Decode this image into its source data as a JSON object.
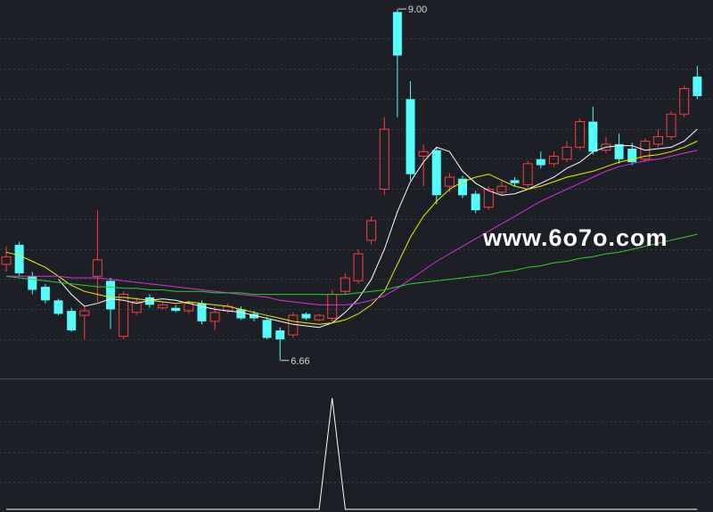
{
  "chart_data": {
    "type": "candlestick",
    "up_color": "#ff4040",
    "down_color": "#54fcfc",
    "ylim": [
      6.54,
      9.06
    ],
    "ohlc": [
      [
        7.3,
        7.42,
        7.25,
        7.35
      ],
      [
        7.43,
        7.45,
        7.22,
        7.24
      ],
      [
        7.22,
        7.25,
        7.1,
        7.13
      ],
      [
        7.15,
        7.17,
        7.04,
        7.06
      ],
      [
        7.06,
        7.07,
        6.96,
        6.97
      ],
      [
        6.99,
        7.01,
        6.85,
        6.86
      ],
      [
        6.96,
        7.02,
        6.8,
        6.99
      ],
      [
        7.22,
        7.66,
        7.05,
        7.33
      ],
      [
        7.19,
        7.21,
        6.87,
        7.0
      ],
      [
        6.82,
        7.12,
        6.8,
        7.1
      ],
      [
        6.98,
        7.08,
        6.96,
        7.05
      ],
      [
        7.08,
        7.1,
        7.01,
        7.03
      ],
      [
        7.01,
        7.05,
        7.0,
        7.03
      ],
      [
        7.01,
        7.03,
        6.98,
        6.99
      ],
      [
        6.99,
        7.06,
        6.97,
        7.04
      ],
      [
        7.04,
        7.06,
        6.9,
        6.92
      ],
      [
        6.92,
        7.02,
        6.86,
        6.98
      ],
      [
        6.99,
        7.04,
        6.97,
        7.02
      ],
      [
        7.0,
        7.02,
        6.93,
        6.94
      ],
      [
        6.97,
        6.99,
        6.92,
        6.94
      ],
      [
        6.93,
        6.95,
        6.8,
        6.81
      ],
      [
        6.86,
        6.88,
        6.66,
        6.8
      ],
      [
        6.83,
        6.98,
        6.81,
        6.96
      ],
      [
        6.97,
        6.98,
        6.93,
        6.94
      ],
      [
        6.93,
        6.97,
        6.92,
        6.96
      ],
      [
        6.94,
        7.13,
        6.92,
        7.1
      ],
      [
        7.12,
        7.24,
        7.1,
        7.21
      ],
      [
        7.19,
        7.4,
        7.17,
        7.37
      ],
      [
        7.46,
        7.62,
        7.43,
        7.59
      ],
      [
        7.8,
        8.28,
        7.76,
        8.2
      ],
      [
        8.98,
        9.0,
        8.28,
        8.69
      ],
      [
        8.4,
        8.52,
        7.86,
        7.9
      ],
      [
        8.02,
        8.1,
        7.82,
        8.05
      ],
      [
        8.06,
        8.08,
        7.7,
        7.76
      ],
      [
        7.82,
        7.91,
        7.78,
        7.88
      ],
      [
        7.87,
        7.89,
        7.74,
        7.76
      ],
      [
        7.77,
        7.79,
        7.64,
        7.66
      ],
      [
        7.68,
        7.82,
        7.66,
        7.8
      ],
      [
        7.78,
        7.85,
        7.76,
        7.82
      ],
      [
        7.86,
        7.88,
        7.82,
        7.84
      ],
      [
        7.83,
        7.99,
        7.81,
        7.97
      ],
      [
        8.0,
        8.05,
        7.94,
        7.96
      ],
      [
        7.97,
        8.05,
        7.95,
        8.02
      ],
      [
        8.0,
        8.12,
        7.98,
        8.08
      ],
      [
        8.08,
        8.27,
        8.06,
        8.25
      ],
      [
        8.25,
        8.35,
        8.03,
        8.05
      ],
      [
        8.06,
        8.15,
        8.04,
        8.1
      ],
      [
        8.1,
        8.17,
        7.97,
        8.0
      ],
      [
        8.07,
        8.11,
        7.96,
        7.98
      ],
      [
        8.0,
        8.14,
        7.98,
        8.12
      ],
      [
        8.1,
        8.2,
        8.08,
        8.15
      ],
      [
        8.15,
        8.32,
        8.13,
        8.3
      ],
      [
        8.3,
        8.49,
        8.28,
        8.47
      ],
      [
        8.55,
        8.62,
        8.4,
        8.42
      ]
    ],
    "series": [
      {
        "color": "#ffffff",
        "values": [
          null,
          null,
          null,
          null,
          7.2,
          7.1,
          7.02,
          7.04,
          7.07,
          7.06,
          7.04,
          7.06,
          7.07,
          7.06,
          7.04,
          7.02,
          7.0,
          6.99,
          6.98,
          6.96,
          6.94,
          6.92,
          6.9,
          6.89,
          6.88,
          6.91,
          6.98,
          7.07,
          7.2,
          7.4,
          7.65,
          7.85,
          7.98,
          8.08,
          8.05,
          7.92,
          7.84,
          7.79,
          7.76,
          7.77,
          7.8,
          7.84,
          7.88,
          7.94,
          7.98,
          8.05,
          8.08,
          8.09,
          8.09,
          8.06,
          8.07,
          8.08,
          8.12,
          8.2
        ]
      },
      {
        "color": "#f0f000",
        "values": [
          7.38,
          7.36,
          7.32,
          7.28,
          7.22,
          7.16,
          7.12,
          7.1,
          7.08,
          7.08,
          7.07,
          7.06,
          7.05,
          7.04,
          7.05,
          7.04,
          7.03,
          7.02,
          7.0,
          6.98,
          6.96,
          6.94,
          6.92,
          6.91,
          6.9,
          6.91,
          6.93,
          6.97,
          7.03,
          7.12,
          7.3,
          7.48,
          7.62,
          7.72,
          7.8,
          7.85,
          7.88,
          7.9,
          7.86,
          7.82,
          7.8,
          7.82,
          7.85,
          7.88,
          7.9,
          7.92,
          7.95,
          7.98,
          8.0,
          8.02,
          8.03,
          8.05,
          8.08,
          8.12
        ]
      },
      {
        "color": "#e030e0",
        "values": [
          7.22,
          7.22,
          7.22,
          7.22,
          7.22,
          7.21,
          7.21,
          7.21,
          7.2,
          7.19,
          7.18,
          7.17,
          7.16,
          7.15,
          7.14,
          7.13,
          7.12,
          7.11,
          7.1,
          7.09,
          7.08,
          7.06,
          7.05,
          7.04,
          7.03,
          7.03,
          7.03,
          7.04,
          7.06,
          7.09,
          7.14,
          7.2,
          7.26,
          7.32,
          7.37,
          7.42,
          7.47,
          7.52,
          7.57,
          7.62,
          7.67,
          7.72,
          7.76,
          7.8,
          7.84,
          7.88,
          7.92,
          7.95,
          7.97,
          7.99,
          8.0,
          8.02,
          8.04,
          8.06
        ]
      },
      {
        "color": "#30d030",
        "values": [
          7.22,
          7.21,
          7.2,
          7.19,
          7.18,
          7.17,
          7.16,
          7.15,
          7.15,
          7.14,
          7.14,
          7.13,
          7.13,
          7.12,
          7.12,
          7.12,
          7.11,
          7.11,
          7.11,
          7.1,
          7.1,
          7.1,
          7.1,
          7.1,
          7.1,
          7.1,
          7.1,
          7.11,
          7.12,
          7.13,
          7.15,
          7.17,
          7.18,
          7.19,
          7.2,
          7.21,
          7.22,
          7.23,
          7.25,
          7.26,
          7.28,
          7.29,
          7.31,
          7.32,
          7.34,
          7.35,
          7.37,
          7.38,
          7.4,
          7.42,
          7.44,
          7.46,
          7.48,
          7.5
        ]
      }
    ],
    "annotations": [
      {
        "value": 9.0,
        "label": "9.00"
      },
      {
        "value": 6.66,
        "label": "6.66"
      }
    ],
    "indicator": {
      "color": "#ffffff",
      "ylim": [
        0,
        1
      ],
      "values": [
        0,
        0,
        0,
        0,
        0,
        0,
        0,
        0,
        0,
        0,
        0,
        0,
        0,
        0,
        0,
        0,
        0,
        0,
        0,
        0,
        0,
        0,
        0,
        0,
        0,
        1,
        0,
        0,
        0,
        0,
        0,
        0,
        0,
        0,
        0,
        0,
        0,
        0,
        0,
        0,
        0,
        0,
        0,
        0,
        0,
        0,
        0,
        0,
        0,
        0,
        0,
        0,
        0,
        0
      ]
    },
    "watermark": "www.6o7o.com"
  }
}
